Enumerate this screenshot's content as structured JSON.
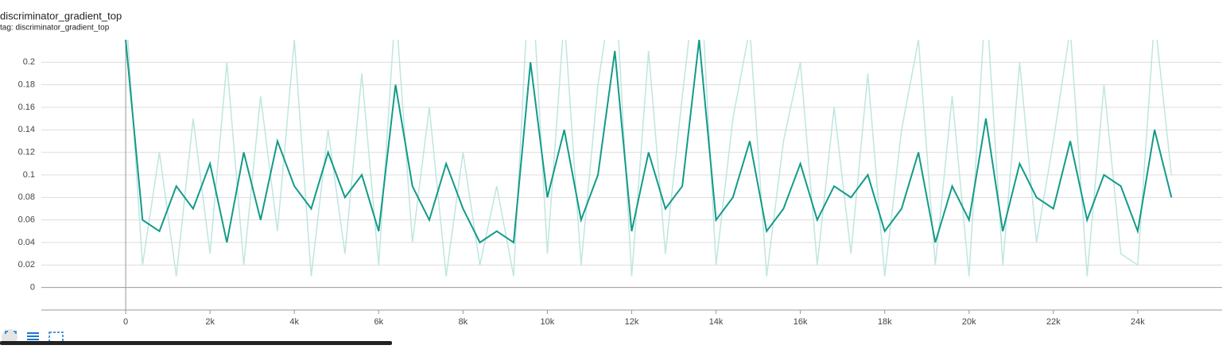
{
  "chart_data": {
    "type": "line",
    "title": "discriminator_gradient_top",
    "subtitle": "tag: discriminator_gradient_top",
    "x": [
      0,
      400,
      800,
      1200,
      1600,
      2000,
      2400,
      2800,
      3200,
      3600,
      4000,
      4400,
      4800,
      5200,
      5600,
      6000,
      6400,
      6800,
      7200,
      7600,
      8000,
      8400,
      8800,
      9200,
      9600,
      10000,
      10400,
      10800,
      11200,
      11600,
      12000,
      12400,
      12800,
      13200,
      13600,
      14000,
      14400,
      14800,
      15200,
      15600,
      16000,
      16400,
      16800,
      17200,
      17600,
      18000,
      18400,
      18800,
      19200,
      19600,
      20000,
      20400,
      20800,
      21200,
      21600,
      22000,
      22400,
      22800,
      23200,
      23600,
      24000,
      24400,
      24800
    ],
    "series": [
      {
        "color": "#bfe6df",
        "values": [
          0.25,
          0.02,
          0.12,
          0.01,
          0.15,
          0.03,
          0.2,
          0.02,
          0.17,
          0.05,
          0.22,
          0.01,
          0.14,
          0.03,
          0.19,
          0.02,
          0.25,
          0.04,
          0.16,
          0.01,
          0.12,
          0.02,
          0.09,
          0.01,
          0.3,
          0.03,
          0.24,
          0.02,
          0.18,
          0.28,
          0.01,
          0.21,
          0.03,
          0.17,
          0.3,
          0.02,
          0.15,
          0.23,
          0.01,
          0.13,
          0.2,
          0.02,
          0.16,
          0.03,
          0.19,
          0.01,
          0.14,
          0.22,
          0.02,
          0.17,
          0.01,
          0.26,
          0.02,
          0.2,
          0.04,
          0.13,
          0.23,
          0.01,
          0.18,
          0.03,
          0.02,
          0.24,
          0.1
        ]
      },
      {
        "color": "#129b88",
        "values": [
          0.22,
          0.06,
          0.05,
          0.09,
          0.07,
          0.11,
          0.04,
          0.12,
          0.06,
          0.13,
          0.09,
          0.07,
          0.12,
          0.08,
          0.1,
          0.05,
          0.18,
          0.09,
          0.06,
          0.11,
          0.07,
          0.04,
          0.05,
          0.04,
          0.2,
          0.08,
          0.14,
          0.06,
          0.1,
          0.21,
          0.05,
          0.12,
          0.07,
          0.09,
          0.22,
          0.06,
          0.08,
          0.13,
          0.05,
          0.07,
          0.11,
          0.06,
          0.09,
          0.08,
          0.1,
          0.05,
          0.07,
          0.12,
          0.04,
          0.09,
          0.06,
          0.15,
          0.05,
          0.11,
          0.08,
          0.07,
          0.13,
          0.06,
          0.1,
          0.09,
          0.05,
          0.14,
          0.08
        ]
      }
    ],
    "xlim": [
      -2000,
      26000
    ],
    "xticks": [
      0,
      {
        "value": 2000,
        "label": "2k"
      },
      {
        "value": 4000,
        "label": "4k"
      },
      {
        "value": 6000,
        "label": "6k"
      },
      {
        "value": 8000,
        "label": "8k"
      },
      {
        "value": 10000,
        "label": "10k"
      },
      {
        "value": 12000,
        "label": "12k"
      },
      {
        "value": 14000,
        "label": "14k"
      },
      {
        "value": 16000,
        "label": "16k"
      },
      {
        "value": 18000,
        "label": "18k"
      },
      {
        "value": 20000,
        "label": "20k"
      },
      {
        "value": 22000,
        "label": "22k"
      },
      {
        "value": 24000,
        "label": "24k"
      }
    ],
    "ylim": [
      -0.02,
      0.22
    ],
    "yticks": [
      0,
      0.02,
      0.04,
      0.06,
      0.08,
      0.1,
      0.12,
      0.14,
      0.16,
      0.18,
      0.2
    ],
    "grid": true
  }
}
